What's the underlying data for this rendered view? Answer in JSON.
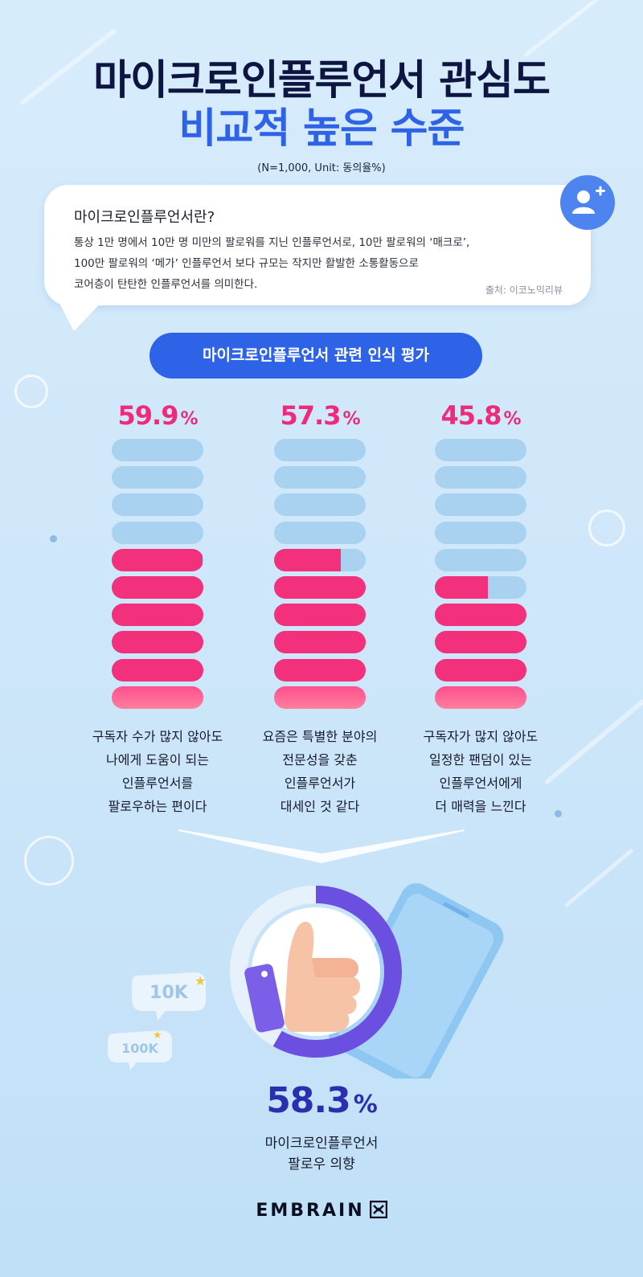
{
  "header": {
    "title_line1": "마이크로인플루언서 관심도",
    "title_line2": "비교적 높은 수준",
    "subtitle": "(N=1,000, Unit: 동의율%)"
  },
  "definition": {
    "heading": "마이크로인플루언서란?",
    "lines": [
      "통상 1만 명에서 10만 명 미만의 팔로워를 지닌 인플루언서로, 10만 팔로워의 ‘매크로’,",
      "100만 팔로워의 ‘메가’ 인플루언서 보다 규모는 작지만 활발한 소통활동으로",
      "코어층이 탄탄한 인플루언서를 의미한다."
    ],
    "source": "출처: 이코노믹리뷰"
  },
  "section_title": "마이크로인플루언서 관련 인식 평가",
  "chart_data": {
    "type": "bar",
    "unit": "%",
    "categories": [
      "구독자 수가 많지 않아도 나에게 도움이 되는 인플루언서를 팔로우하는 편이다",
      "요즘은 특별한 분야의 전문성을 갖춘 인플루언서가 대세인 것 같다",
      "구독자가 많지 않아도 일정한 팬덤이 있는 인플루언서에게 더 매력을 느낀다"
    ],
    "values": [
      59.9,
      57.3,
      45.8
    ],
    "value_labels": [
      "59.9",
      "57.3",
      "45.8"
    ],
    "ylim": [
      0,
      100
    ],
    "segments_per_bar": 10,
    "captions": [
      [
        "구독자 수가 많지 않아도",
        "나에게 도움이 되는",
        "인플루언서를",
        "팔로우하는 편이다"
      ],
      [
        "요즘은 특별한 분야의",
        "전문성을 갖춘",
        "인플루언서가",
        "대세인 것 같다"
      ],
      [
        "구독자가 많지 않아도",
        "일정한 팬덤이 있는",
        "인플루언서에게",
        "더 매력을 느낀다"
      ]
    ]
  },
  "summary": {
    "value": 58.3,
    "value_label": "58.3",
    "percent_symbol": "%",
    "label_line1": "마이크로인플루언서",
    "label_line2": "팔로우 의향"
  },
  "follower_badges": [
    "10K",
    "100K"
  ],
  "brand": "EMBRAIN",
  "colors": {
    "navy": "#0f1541",
    "blue": "#2e63e8",
    "pink": "#f2307c",
    "light_blue_bar": "#a9d2f1",
    "purple": "#6a4fe0",
    "summary_blue": "#2a2fb0"
  },
  "icons": [
    "add-user-icon",
    "thumbs-up-icon",
    "smartphone-icon",
    "star-icon",
    "embrain-logo-icon"
  ]
}
